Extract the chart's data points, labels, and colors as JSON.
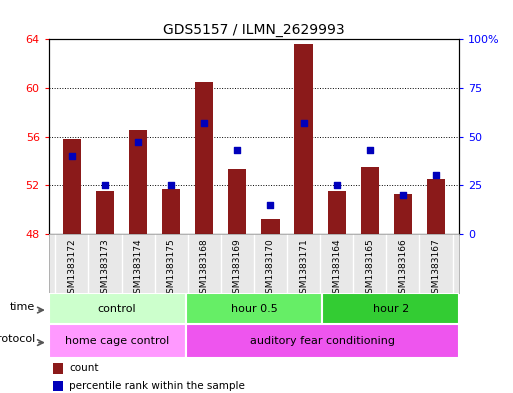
{
  "title": "GDS5157 / ILMN_2629993",
  "samples": [
    "GSM1383172",
    "GSM1383173",
    "GSM1383174",
    "GSM1383175",
    "GSM1383168",
    "GSM1383169",
    "GSM1383170",
    "GSM1383171",
    "GSM1383164",
    "GSM1383165",
    "GSM1383166",
    "GSM1383167"
  ],
  "counts": [
    55.8,
    51.5,
    56.5,
    51.7,
    60.5,
    53.3,
    49.2,
    63.6,
    51.5,
    53.5,
    51.3,
    52.5
  ],
  "percentiles": [
    40,
    25,
    47,
    25,
    57,
    43,
    15,
    57,
    25,
    43,
    20,
    30
  ],
  "ylim_left": [
    48,
    64
  ],
  "ylim_right": [
    0,
    100
  ],
  "yticks_left": [
    48,
    52,
    56,
    60,
    64
  ],
  "yticks_right": [
    0,
    25,
    50,
    75,
    100
  ],
  "ytick_labels_right": [
    "0",
    "25",
    "50",
    "75",
    "100%"
  ],
  "bar_color": "#8B1A1A",
  "dot_color": "#0000BB",
  "time_groups": [
    {
      "label": "control",
      "start": 0,
      "end": 4,
      "color": "#CCFFCC"
    },
    {
      "label": "hour 0.5",
      "start": 4,
      "end": 8,
      "color": "#66EE66"
    },
    {
      "label": "hour 2",
      "start": 8,
      "end": 12,
      "color": "#33CC33"
    }
  ],
  "protocol_groups": [
    {
      "label": "home cage control",
      "start": 0,
      "end": 4,
      "color": "#FF99FF"
    },
    {
      "label": "auditory fear conditioning",
      "start": 4,
      "end": 12,
      "color": "#EE55EE"
    }
  ],
  "figsize": [
    5.13,
    3.93
  ],
  "dpi": 100,
  "fig_bg": "#EEEEEE",
  "chart_bg": "#FFFFFF"
}
